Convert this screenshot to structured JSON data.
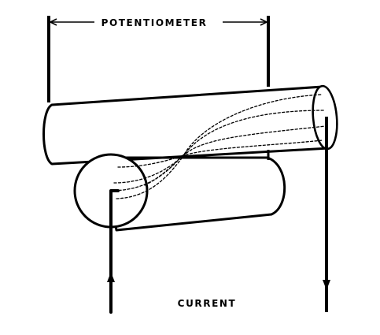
{
  "labels": {
    "top": "POTENTIOMETER",
    "bottom": "CURRENT"
  },
  "colors": {
    "ink": "#000000",
    "paper": "#ffffff"
  }
}
